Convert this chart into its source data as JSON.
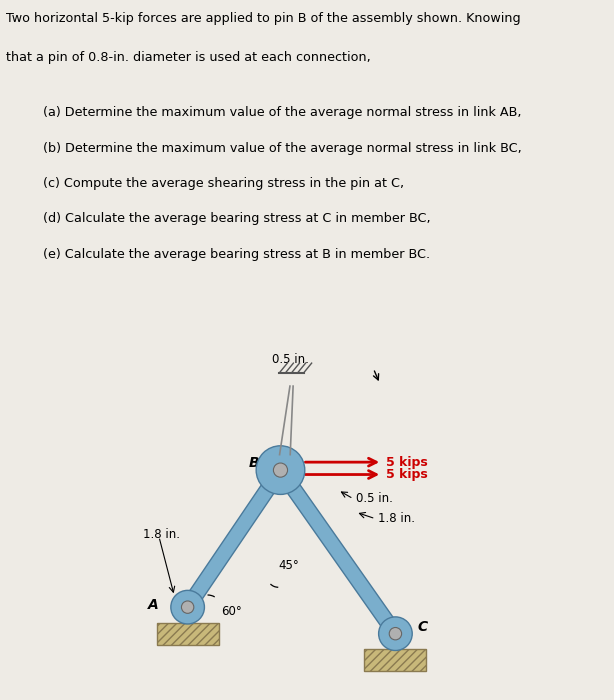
{
  "bg_color": "#eeebe5",
  "title_line1": "Two horizontal 5-kip forces are applied to pin B of the assembly shown. Knowing",
  "title_line2": "that a pin of 0.8-in. diameter is used at each connection,",
  "items": [
    "(a) Determine the maximum value of the average normal stress in link AB,",
    "(b) Determine the maximum value of the average normal stress in link BC,",
    "(c) Compute the average shearing stress in the pin at C,",
    "(d) Calculate the average bearing stress at C in member BC,",
    "(e) Calculate the average bearing stress at B in member BC."
  ],
  "label_05_in_top": "0.5 in.",
  "label_18_in_left": "1.8 in.",
  "label_B": "B",
  "label_A": "A",
  "label_C": "C",
  "label_5kips_1": "5 kips",
  "label_5kips_2": "5 kips",
  "label_05_in_right": "0.5 in.",
  "label_18_in_right": "1.8 in.",
  "label_60": "60°",
  "label_45": "45°",
  "arrow_color": "#cc0000",
  "member_color": "#7aaecc",
  "member_edge": "#4a7a9b",
  "support_color": "#c8b87a",
  "support_edge": "#8a7a50",
  "pin_color": "#b0b0b0",
  "pin_edge": "#666666"
}
